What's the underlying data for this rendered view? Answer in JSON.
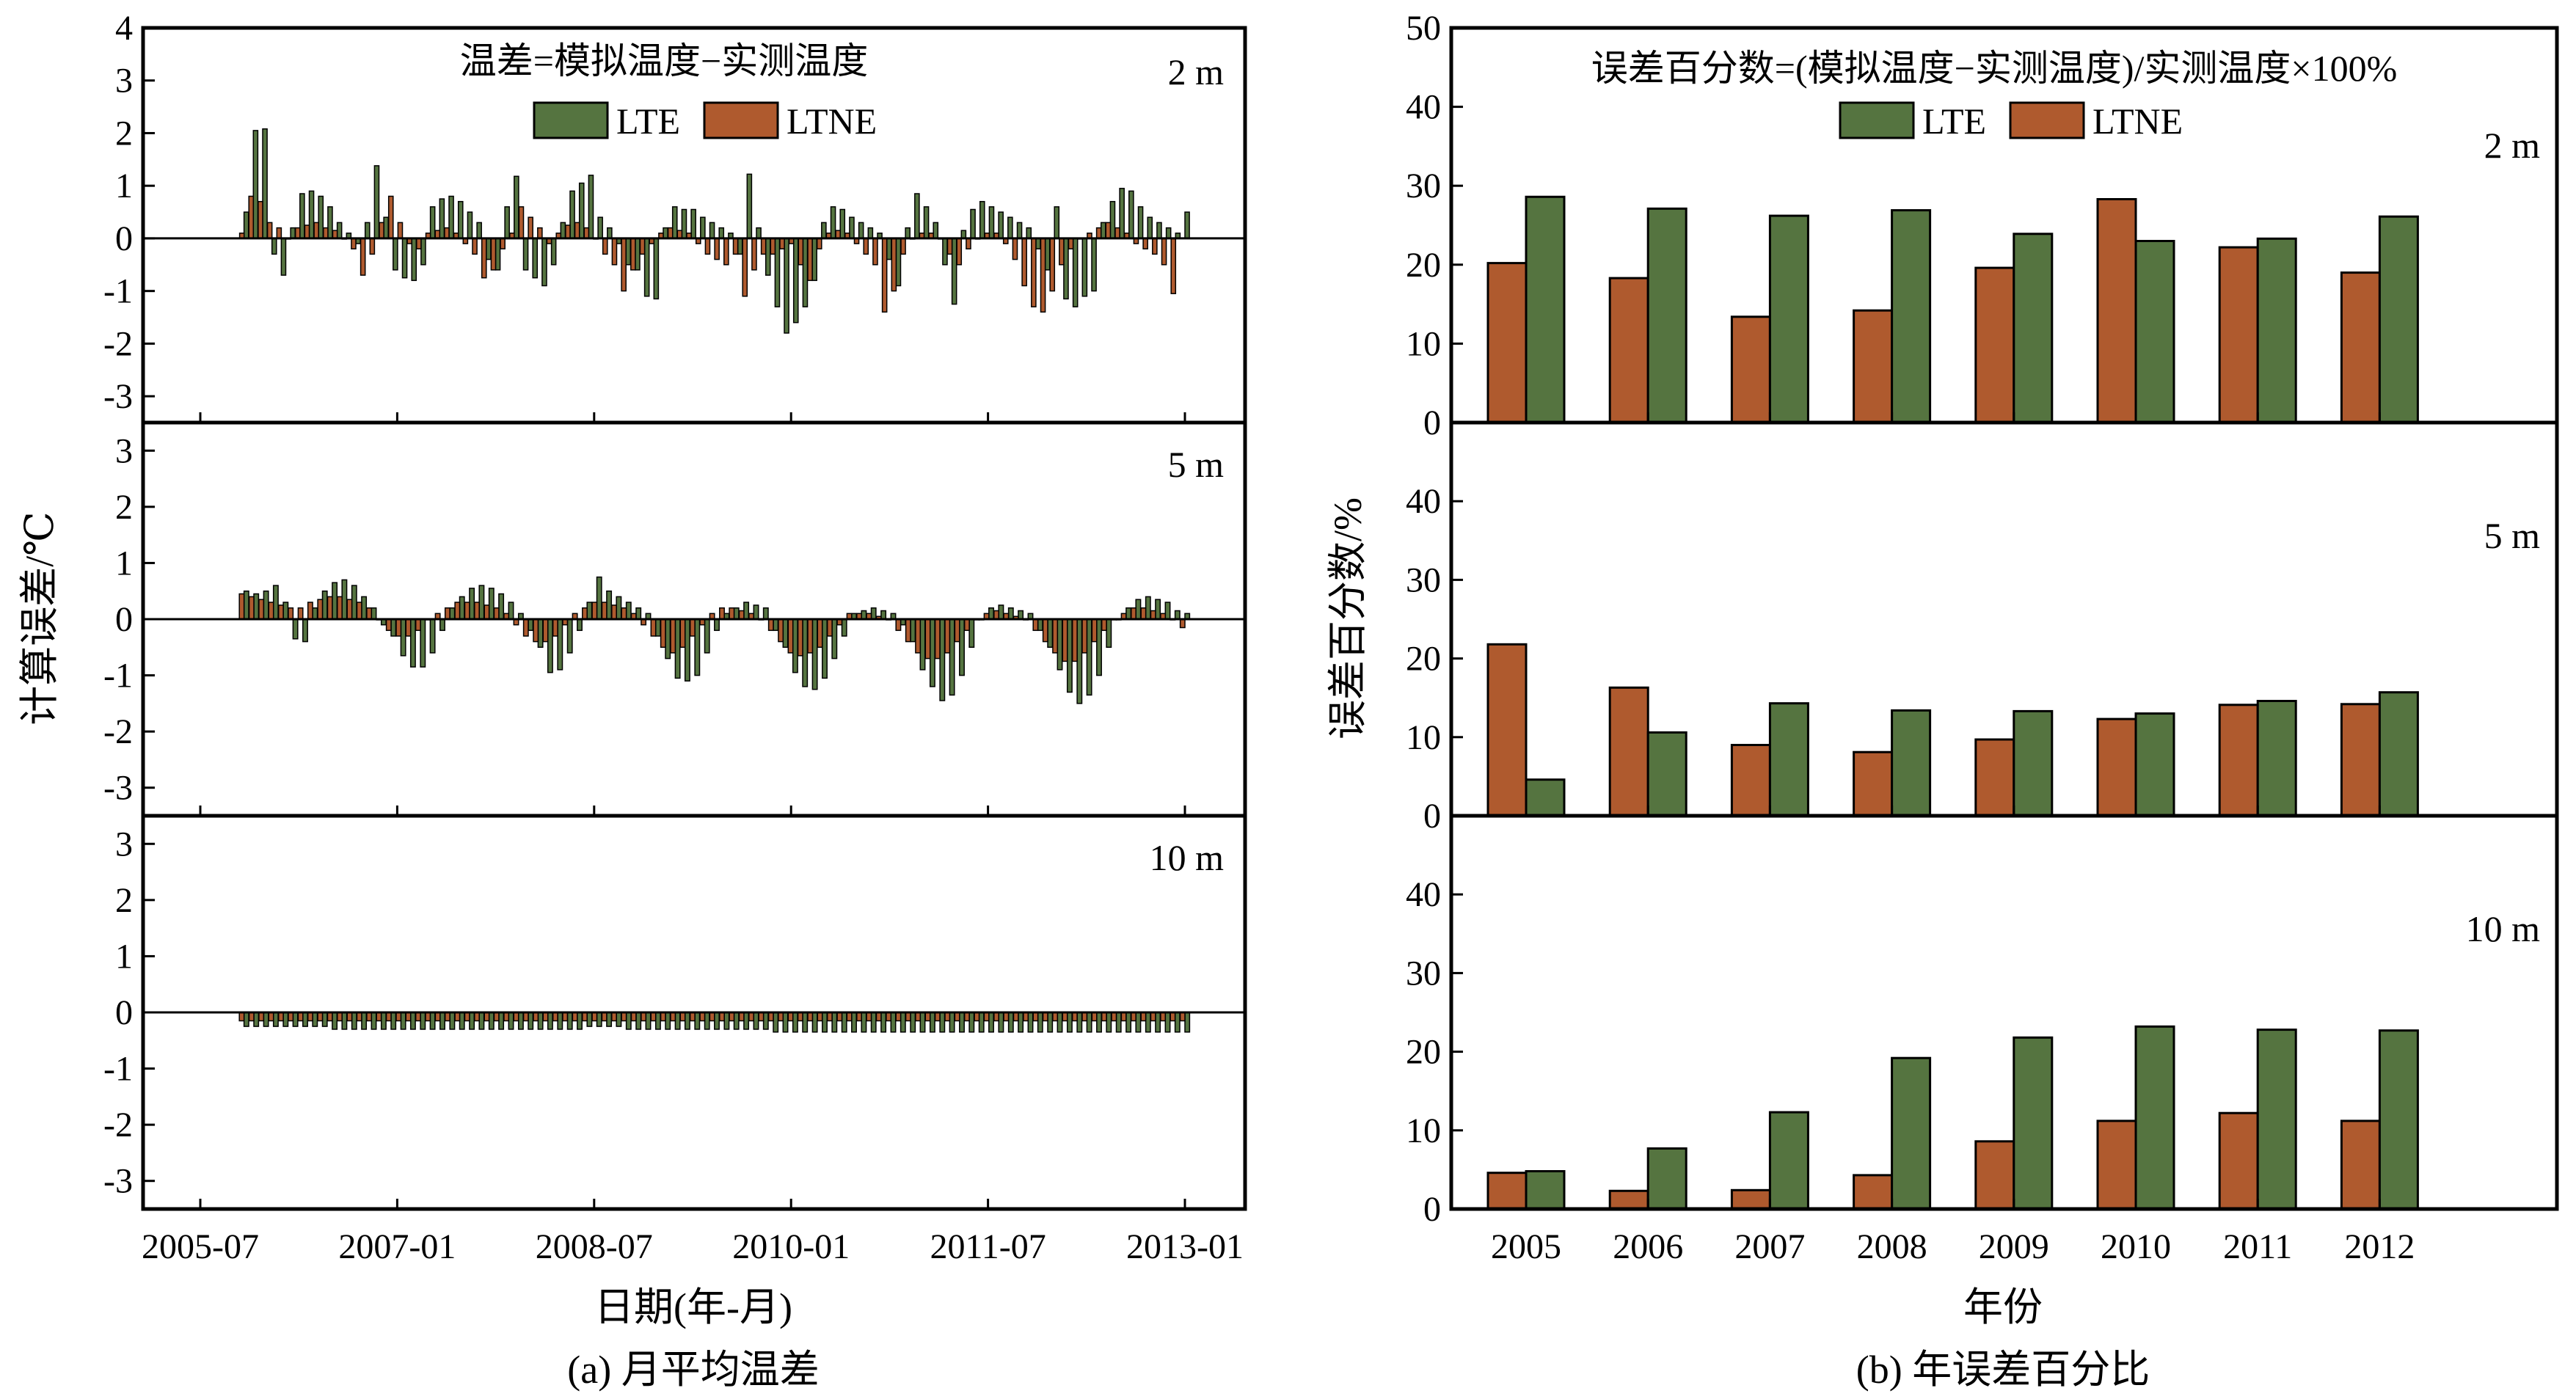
{
  "colors": {
    "LTE": "#557440",
    "LTNE": "#AF5A2E",
    "edge": "#000000"
  },
  "panel_a": {
    "formula": "温差=模拟温度−实测温度",
    "legend": [
      "LTE",
      "LTNE"
    ],
    "ylabel": "计算误差/℃",
    "xlabel": "日期(年-月)",
    "caption": "(a) 月平均温差",
    "depth_labels": [
      "2 m",
      "5 m",
      "10 m"
    ],
    "yticks_top": [
      "4",
      "3",
      "2",
      "1",
      "0",
      "-1",
      "-2",
      "-3"
    ],
    "yticks_lower": [
      "3",
      "2",
      "1",
      "0",
      "-1",
      "-2",
      "-3"
    ],
    "xticks": [
      "2005-07",
      "2007-01",
      "2008-07",
      "2010-01",
      "2011-07",
      "2013-01"
    ]
  },
  "panel_b": {
    "formula": "误差百分数=(模拟温度−实测温度)/实测温度×100%",
    "legend": [
      "LTE",
      "LTNE"
    ],
    "ylabel": "误差百分数/%",
    "xlabel": "年份",
    "caption": "(b) 年误差百分比",
    "depth_labels": [
      "2 m",
      "5 m",
      "10 m"
    ],
    "yticks_top": [
      "50",
      "40",
      "30",
      "20",
      "10",
      "0"
    ],
    "yticks_lower": [
      "40",
      "30",
      "20",
      "10",
      "0"
    ],
    "xticks": [
      "2005",
      "2006",
      "2007",
      "2008",
      "2009",
      "2010",
      "2011",
      "2012"
    ]
  },
  "chart_data": [
    {
      "type": "bar",
      "title": "温差=模拟温度−实测温度",
      "xlabel": "日期(年-月)",
      "ylabel": "计算误差/℃",
      "panels": [
        {
          "label": "2 m",
          "ylim": [
            -3.5,
            4
          ],
          "x_start": "2005-11",
          "x_end": "2013-01",
          "series": [
            {
              "name": "LTE",
              "values": [
                0.5,
                2.05,
                2.08,
                -0.3,
                -0.7,
                0.2,
                0.85,
                0.9,
                0.8,
                0.6,
                0.3,
                0.1,
                -0.1,
                0.3,
                1.38,
                0.4,
                -0.6,
                -0.75,
                -0.8,
                -0.5,
                0.6,
                0.75,
                0.8,
                0.7,
                0.5,
                0.3,
                -0.4,
                -0.6,
                0.6,
                1.18,
                -0.6,
                -0.75,
                -0.9,
                -0.5,
                0.3,
                0.9,
                1.05,
                1.2,
                0.4,
                0.2,
                -0.1,
                -0.5,
                -0.6,
                -1.1,
                -1.15,
                0.2,
                0.6,
                0.55,
                0.55,
                0.4,
                0.3,
                0.2,
                0.1,
                -0.3,
                1.22,
                0.2,
                -0.7,
                -1.3,
                -1.8,
                -1.6,
                -1.3,
                -0.8,
                0.3,
                0.6,
                0.55,
                0.4,
                0.3,
                0.2,
                0.1,
                -0.4,
                -0.9,
                0.2,
                0.85,
                0.6,
                0.3,
                -0.5,
                -1.25,
                0.15,
                0.55,
                0.7,
                0.6,
                0.5,
                0.4,
                0.3,
                0.2,
                -0.2,
                -0.6,
                0.6,
                -1.15,
                -1.3,
                -1.1,
                -1.0,
                0.3,
                0.7,
                0.95,
                0.9,
                0.6,
                0.4,
                0.3,
                0.2,
                0.1,
                0.5
              ]
            },
            {
              "name": "LTNE",
              "values": [
                0.1,
                0.8,
                0.7,
                0.3,
                0.2,
                0.0,
                0.2,
                0.25,
                0.3,
                0.2,
                0.15,
                0.0,
                -0.2,
                -0.7,
                -0.3,
                0.3,
                0.8,
                0.3,
                -0.1,
                -0.2,
                0.1,
                0.15,
                0.2,
                0.1,
                -0.1,
                -0.3,
                -0.75,
                -0.6,
                -0.2,
                0.1,
                0.6,
                0.4,
                0.2,
                -0.1,
                0.1,
                0.25,
                0.3,
                0.2,
                0.0,
                -0.3,
                -0.5,
                -1.0,
                -0.6,
                -0.3,
                -0.1,
                0.1,
                0.2,
                0.15,
                0.1,
                -0.1,
                -0.3,
                -0.4,
                -0.5,
                -0.3,
                -1.1,
                -0.6,
                -0.3,
                -0.3,
                -0.2,
                -0.1,
                -0.5,
                -0.8,
                -0.2,
                0.1,
                0.15,
                0.1,
                -0.1,
                -0.3,
                -0.5,
                -1.4,
                -1.0,
                -0.3,
                0.0,
                0.1,
                0.1,
                0.0,
                -0.3,
                -0.5,
                -0.2,
                0.0,
                0.1,
                0.1,
                -0.1,
                -0.4,
                -0.9,
                -1.3,
                -1.4,
                -1.0,
                -0.5,
                -0.2,
                0.0,
                0.1,
                0.2,
                0.3,
                0.2,
                0.1,
                -0.1,
                -0.2,
                -0.3,
                -0.5,
                -1.05
              ]
            }
          ]
        },
        {
          "label": "5 m",
          "ylim": [
            -3.5,
            3.5
          ],
          "x_start": "2005-11",
          "x_end": "2013-01",
          "series": [
            {
              "name": "LTE",
              "values": [
                0.5,
                0.45,
                0.5,
                0.6,
                0.3,
                -0.35,
                -0.4,
                0.2,
                0.5,
                0.65,
                0.7,
                0.6,
                0.4,
                0.2,
                -0.1,
                -0.3,
                -0.65,
                -0.85,
                -0.85,
                -0.6,
                -0.2,
                0.2,
                0.4,
                0.55,
                0.6,
                0.55,
                0.45,
                0.3,
                0.1,
                -0.2,
                -0.5,
                -0.95,
                -0.9,
                -0.6,
                -0.2,
                0.3,
                0.75,
                0.5,
                0.4,
                0.3,
                0.2,
                0.1,
                -0.3,
                -0.7,
                -1.05,
                -1.1,
                -1.0,
                -0.6,
                -0.2,
                0.1,
                0.2,
                0.3,
                0.25,
                0.2,
                -0.2,
                -0.5,
                -0.95,
                -1.2,
                -1.25,
                -1.05,
                -0.7,
                -0.3,
                0.1,
                0.15,
                0.2,
                0.15,
                0.1,
                -0.1,
                -0.4,
                -0.9,
                -1.2,
                -1.45,
                -1.35,
                -1.0,
                -0.5,
                0.0,
                0.2,
                0.25,
                0.2,
                0.15,
                0.1,
                -0.2,
                -0.5,
                -0.9,
                -1.3,
                -1.5,
                -1.35,
                -1.0,
                -0.5,
                0.0,
                0.2,
                0.35,
                0.4,
                0.35,
                0.3,
                0.15,
                0.1
              ]
            },
            {
              "name": "LTNE",
              "values": [
                0.45,
                0.4,
                0.35,
                0.3,
                0.25,
                0.2,
                0.2,
                0.3,
                0.35,
                0.4,
                0.4,
                0.35,
                0.3,
                0.2,
                0.0,
                -0.2,
                -0.3,
                -0.3,
                -0.2,
                0.0,
                0.1,
                0.2,
                0.3,
                0.3,
                0.3,
                0.25,
                0.2,
                0.1,
                -0.1,
                -0.3,
                -0.4,
                -0.4,
                -0.3,
                -0.1,
                0.1,
                0.2,
                0.3,
                0.3,
                0.25,
                0.2,
                0.1,
                -0.1,
                -0.3,
                -0.5,
                -0.6,
                -0.5,
                -0.3,
                -0.1,
                0.1,
                0.2,
                0.2,
                0.15,
                0.1,
                0.0,
                -0.2,
                -0.4,
                -0.6,
                -0.65,
                -0.6,
                -0.5,
                -0.3,
                -0.1,
                0.1,
                0.1,
                0.1,
                0.05,
                0.0,
                -0.2,
                -0.4,
                -0.6,
                -0.7,
                -0.7,
                -0.6,
                -0.4,
                -0.2,
                0.0,
                0.1,
                0.15,
                0.1,
                0.05,
                0.0,
                -0.2,
                -0.4,
                -0.6,
                -0.75,
                -0.75,
                -0.6,
                -0.4,
                -0.2,
                0.0,
                0.1,
                0.2,
                0.2,
                0.15,
                0.1,
                0.0,
                -0.15
              ]
            }
          ]
        },
        {
          "label": "10 m",
          "ylim": [
            -3.5,
            3.5
          ],
          "x_start": "2005-11",
          "x_end": "2013-01",
          "series": [
            {
              "name": "LTE",
              "values": [
                -0.25,
                -0.25,
                -0.25,
                -0.25,
                -0.25,
                -0.25,
                -0.25,
                -0.25,
                -0.25,
                -0.3,
                -0.3,
                -0.3,
                -0.3,
                -0.3,
                -0.3,
                -0.3,
                -0.3,
                -0.3,
                -0.3,
                -0.3,
                -0.3,
                -0.3,
                -0.3,
                -0.3,
                -0.3,
                -0.3,
                -0.3,
                -0.3,
                -0.3,
                -0.3,
                -0.3,
                -0.3,
                -0.3,
                -0.3,
                -0.3,
                -0.25,
                -0.25,
                -0.25,
                -0.25,
                -0.3,
                -0.3,
                -0.3,
                -0.3,
                -0.3,
                -0.3,
                -0.3,
                -0.3,
                -0.3,
                -0.3,
                -0.3,
                -0.3,
                -0.3,
                -0.3,
                -0.3,
                -0.35,
                -0.35,
                -0.35,
                -0.35,
                -0.35,
                -0.35,
                -0.35,
                -0.35,
                -0.35,
                -0.35,
                -0.35,
                -0.35,
                -0.35,
                -0.35,
                -0.35,
                -0.35,
                -0.35,
                -0.35,
                -0.35,
                -0.35,
                -0.35,
                -0.35,
                -0.35,
                -0.35,
                -0.35,
                -0.35,
                -0.35,
                -0.35,
                -0.35,
                -0.35,
                -0.35,
                -0.35,
                -0.35,
                -0.35,
                -0.35,
                -0.35,
                -0.35,
                -0.35,
                -0.35,
                -0.35,
                -0.35,
                -0.35,
                -0.35
              ]
            },
            {
              "name": "LTNE",
              "values": [
                -0.15,
                -0.15,
                -0.15,
                -0.15,
                -0.15,
                -0.15,
                -0.15,
                -0.15,
                -0.15,
                -0.15,
                -0.15,
                -0.15,
                -0.15,
                -0.15,
                -0.15,
                -0.15,
                -0.15,
                -0.15,
                -0.15,
                -0.15,
                -0.15,
                -0.15,
                -0.15,
                -0.15,
                -0.15,
                -0.15,
                -0.15,
                -0.15,
                -0.15,
                -0.15,
                -0.15,
                -0.15,
                -0.15,
                -0.15,
                -0.15,
                -0.15,
                -0.15,
                -0.15,
                -0.15,
                -0.15,
                -0.15,
                -0.15,
                -0.15,
                -0.15,
                -0.15,
                -0.15,
                -0.15,
                -0.15,
                -0.15,
                -0.15,
                -0.15,
                -0.15,
                -0.15,
                -0.15,
                -0.15,
                -0.15,
                -0.15,
                -0.15,
                -0.15,
                -0.15,
                -0.15,
                -0.15,
                -0.15,
                -0.15,
                -0.15,
                -0.15,
                -0.15,
                -0.15,
                -0.15,
                -0.15,
                -0.15,
                -0.15,
                -0.15,
                -0.15,
                -0.15,
                -0.15,
                -0.15,
                -0.15,
                -0.15,
                -0.15,
                -0.15,
                -0.15,
                -0.15,
                -0.15,
                -0.15,
                -0.15,
                -0.15,
                -0.15,
                -0.15,
                -0.15,
                -0.15,
                -0.15,
                -0.15,
                -0.15,
                -0.15,
                -0.15,
                -0.15
              ]
            }
          ]
        }
      ]
    },
    {
      "type": "bar",
      "title": "误差百分数=(模拟温度−实测温度)/实测温度×100%",
      "xlabel": "年份",
      "ylabel": "误差百分数/%",
      "categories": [
        "2005",
        "2006",
        "2007",
        "2008",
        "2009",
        "2010",
        "2011",
        "2012"
      ],
      "panels": [
        {
          "label": "2 m",
          "ylim": [
            0,
            50
          ],
          "series": [
            {
              "name": "LTNE",
              "values": [
                20.2,
                18.3,
                13.4,
                14.2,
                19.6,
                28.3,
                22.2,
                19.0
              ]
            },
            {
              "name": "LTE",
              "values": [
                28.6,
                27.1,
                26.2,
                26.9,
                23.9,
                23.0,
                23.3,
                26.1
              ]
            }
          ]
        },
        {
          "label": "5 m",
          "ylim": [
            0,
            50
          ],
          "series": [
            {
              "name": "LTNE",
              "values": [
                21.8,
                16.3,
                9.0,
                8.1,
                9.7,
                12.3,
                14.1,
                14.2
              ]
            },
            {
              "name": "LTE",
              "values": [
                4.6,
                10.6,
                14.3,
                13.4,
                13.3,
                13.0,
                14.6,
                15.7
              ]
            }
          ]
        },
        {
          "label": "10 m",
          "ylim": [
            0,
            50
          ],
          "series": [
            {
              "name": "LTNE",
              "values": [
                4.6,
                2.3,
                2.4,
                4.3,
                8.6,
                11.2,
                12.2,
                11.2
              ]
            },
            {
              "name": "LTE",
              "values": [
                4.8,
                7.7,
                12.3,
                19.2,
                21.8,
                23.2,
                22.8,
                22.7
              ]
            }
          ]
        }
      ]
    }
  ]
}
